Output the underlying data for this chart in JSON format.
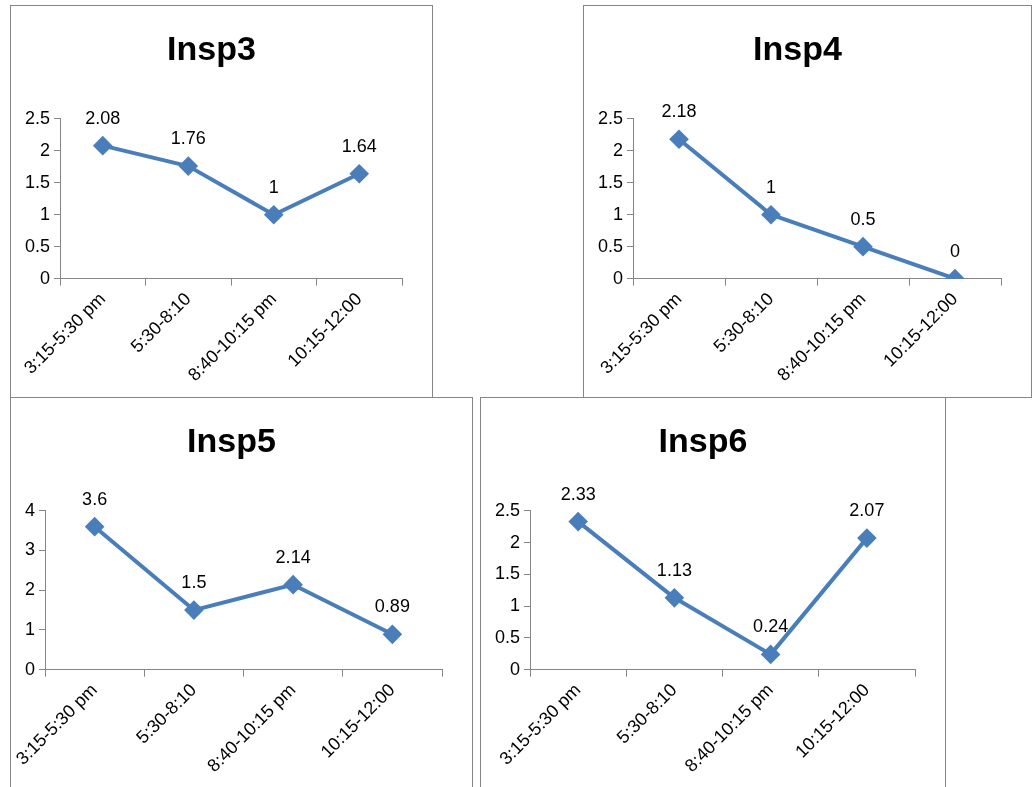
{
  "chart_data": [
    {
      "type": "line",
      "title": "Insp3",
      "categories": [
        "3:15-5:30 pm",
        "5:30-8:10",
        "8:40-10:15 pm",
        "10:15-12:00"
      ],
      "values": [
        2.08,
        1.76,
        1,
        1.64
      ],
      "color": "#4a7ebb",
      "marker": "diamond",
      "ylim": [
        0,
        2.5
      ],
      "yticks": [
        0,
        0.5,
        1,
        1.5,
        2,
        2.5
      ],
      "data_labels": true
    },
    {
      "type": "line",
      "title": "Insp4",
      "categories": [
        "3:15-5:30 pm",
        "5:30-8:10",
        "8:40-10:15 pm",
        "10:15-12:00"
      ],
      "values": [
        2.18,
        1,
        0.5,
        0
      ],
      "color": "#4a7ebb",
      "marker": "diamond",
      "ylim": [
        0,
        2.5
      ],
      "yticks": [
        0,
        0.5,
        1,
        1.5,
        2,
        2.5
      ],
      "data_labels": true
    },
    {
      "type": "line",
      "title": "Insp5",
      "categories": [
        "3:15-5:30 pm",
        "5:30-8:10",
        "8:40-10:15 pm",
        "10:15-12:00"
      ],
      "values": [
        3.6,
        1.5,
        2.14,
        0.89
      ],
      "color": "#4a7ebb",
      "marker": "diamond",
      "ylim": [
        0,
        4
      ],
      "yticks": [
        0,
        1,
        2,
        3,
        4
      ],
      "data_labels": true
    },
    {
      "type": "line",
      "title": "Insp6",
      "categories": [
        "3:15-5:30 pm",
        "5:30-8:10",
        "8:40-10:15 pm",
        "10:15-12:00"
      ],
      "values": [
        2.33,
        1.13,
        0.24,
        2.07
      ],
      "color": "#4a7ebb",
      "marker": "diamond",
      "ylim": [
        0,
        2.5
      ],
      "yticks": [
        0,
        0.5,
        1,
        1.5,
        2,
        2.5
      ],
      "data_labels": true
    }
  ]
}
